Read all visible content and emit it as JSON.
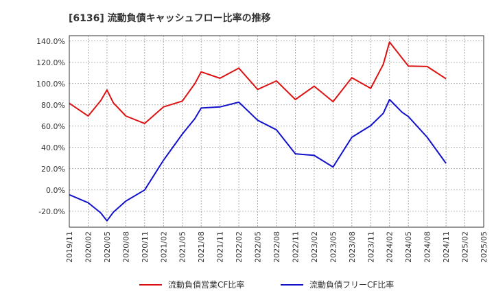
{
  "chart_data": {
    "type": "line",
    "title": "[6136]  流動負債キャッシュフロー比率の推移",
    "xlabel": "",
    "ylabel": "",
    "ylim": [
      -35,
      145
    ],
    "y_ticks": [
      -20,
      0,
      20,
      40,
      60,
      80,
      100,
      120,
      140
    ],
    "y_tick_labels": [
      "-20.0%",
      "0.0%",
      "20.0%",
      "40.0%",
      "60.0%",
      "80.0%",
      "100.0%",
      "120.0%",
      "140.0%"
    ],
    "x_tick_labels": [
      "2019/11",
      "2020/02",
      "2020/05",
      "2020/08",
      "2020/11",
      "2021/02",
      "2021/05",
      "2021/08",
      "2021/11",
      "2022/02",
      "2022/05",
      "2022/08",
      "2022/11",
      "2023/02",
      "2023/05",
      "2023/08",
      "2023/11",
      "2024/02",
      "2024/05",
      "2024/08",
      "2024/11",
      "2025/02",
      "2025/05"
    ],
    "grid": true,
    "legend_position": "bottom",
    "series": [
      {
        "name": "流動負債営業CF比率",
        "color": "#dd1111",
        "points": [
          [
            "2019/11",
            81.5
          ],
          [
            "2020/02",
            69.5
          ],
          [
            "2020/04",
            84.0
          ],
          [
            "2020/05",
            94.0
          ],
          [
            "2020/06",
            82.0
          ],
          [
            "2020/08",
            69.5
          ],
          [
            "2020/11",
            62.5
          ],
          [
            "2021/02",
            78.0
          ],
          [
            "2021/05",
            83.5
          ],
          [
            "2021/07",
            100.0
          ],
          [
            "2021/08",
            111.0
          ],
          [
            "2021/11",
            105.0
          ],
          [
            "2022/02",
            114.5
          ],
          [
            "2022/05",
            94.5
          ],
          [
            "2022/08",
            102.5
          ],
          [
            "2022/11",
            85.0
          ],
          [
            "2023/02",
            97.5
          ],
          [
            "2023/05",
            83.0
          ],
          [
            "2023/08",
            105.5
          ],
          [
            "2023/11",
            95.5
          ],
          [
            "2024/01",
            118.0
          ],
          [
            "2024/02",
            139.0
          ],
          [
            "2024/04",
            124.0
          ],
          [
            "2024/05",
            116.5
          ],
          [
            "2024/08",
            116.0
          ],
          [
            "2024/11",
            104.5
          ]
        ]
      },
      {
        "name": "流動負債フリーCF比率",
        "color": "#1111cc",
        "points": [
          [
            "2019/11",
            -4.5
          ],
          [
            "2020/02",
            -12.0
          ],
          [
            "2020/04",
            -21.5
          ],
          [
            "2020/05",
            -29.0
          ],
          [
            "2020/06",
            -21.0
          ],
          [
            "2020/08",
            -10.5
          ],
          [
            "2020/11",
            0.0
          ],
          [
            "2021/02",
            28.0
          ],
          [
            "2021/05",
            52.5
          ],
          [
            "2021/07",
            67.0
          ],
          [
            "2021/08",
            77.0
          ],
          [
            "2021/11",
            78.0
          ],
          [
            "2022/02",
            82.5
          ],
          [
            "2022/05",
            65.5
          ],
          [
            "2022/08",
            56.5
          ],
          [
            "2022/11",
            34.0
          ],
          [
            "2023/02",
            32.5
          ],
          [
            "2023/05",
            21.5
          ],
          [
            "2023/08",
            49.5
          ],
          [
            "2023/11",
            60.5
          ],
          [
            "2024/01",
            72.0
          ],
          [
            "2024/02",
            85.0
          ],
          [
            "2024/04",
            73.0
          ],
          [
            "2024/05",
            69.0
          ],
          [
            "2024/08",
            49.5
          ],
          [
            "2024/11",
            25.0
          ]
        ]
      }
    ]
  }
}
